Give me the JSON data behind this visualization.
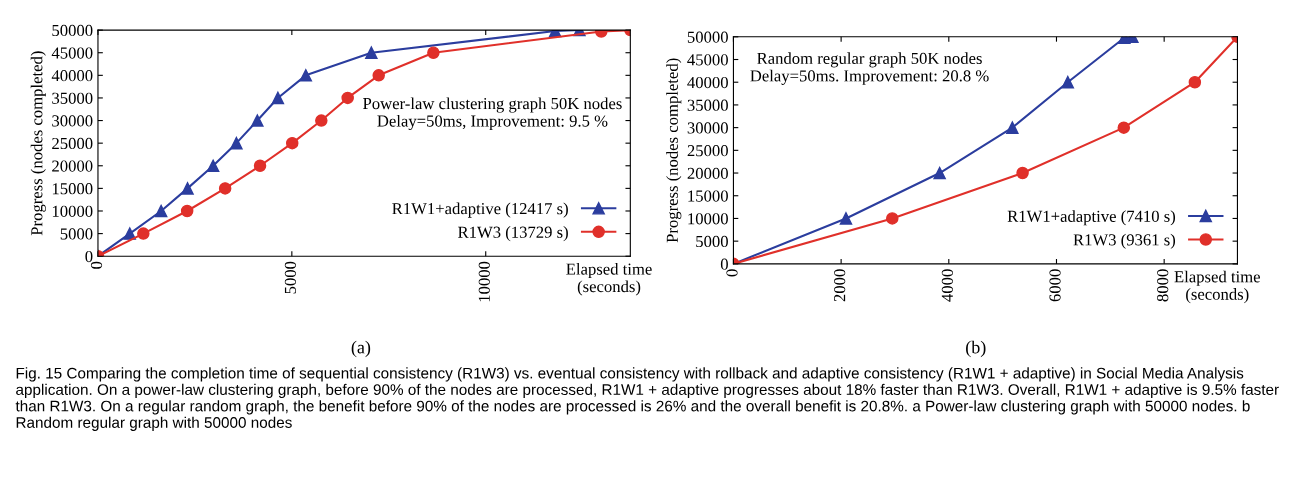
{
  "chart_data": [
    {
      "type": "line",
      "xlabel": "Elapsed time\n(seconds)",
      "ylabel": "Progress (nodes completed)",
      "xlim": [
        0,
        13729
      ],
      "xticks": [
        0,
        5000,
        10000
      ],
      "ylim": [
        0,
        50000
      ],
      "yticks": [
        0,
        5000,
        10000,
        15000,
        20000,
        25000,
        30000,
        35000,
        40000,
        45000,
        50000
      ],
      "legend": "bottom right",
      "grid": false,
      "series": [
        {
          "name": "R1W1+adaptive (12417 s)",
          "color": "#2b3d9e",
          "marker": "triangle",
          "x": [
            0,
            820,
            1630,
            2310,
            2970,
            3570,
            4110,
            4640,
            5360,
            7050,
            11790,
            12417
          ],
          "values": [
            0,
            5000,
            10000,
            15000,
            20000,
            25000,
            30000,
            35000,
            40000,
            45000,
            49800,
            50000
          ]
        },
        {
          "name": "R1W3 (13729 s)",
          "color": "#e0302a",
          "marker": "circle",
          "x": [
            0,
            1170,
            2300,
            3280,
            4180,
            5010,
            5760,
            6440,
            7240,
            8650,
            12980,
            13729
          ],
          "values": [
            0,
            5000,
            10000,
            15000,
            20000,
            25000,
            30000,
            35000,
            40000,
            45000,
            49700,
            50000
          ]
        }
      ],
      "annotations": [
        "Power-law clustering graph 50K nodes\nDelay=50ms, Improvement: 9.5 %",
        "(a)"
      ]
    },
    {
      "type": "line",
      "xlabel": "Elapsed time\n(seconds)",
      "ylabel": "Progress (nodes completed)",
      "xlim": [
        0,
        9361
      ],
      "xticks": [
        0,
        2000,
        4000,
        6000,
        8000
      ],
      "ylim": [
        0,
        50000
      ],
      "yticks": [
        0,
        5000,
        10000,
        15000,
        20000,
        25000,
        30000,
        35000,
        40000,
        45000,
        50000
      ],
      "legend": "bottom right",
      "grid": false,
      "series": [
        {
          "name": "R1W1+adaptive (7410 s)",
          "color": "#2b3d9e",
          "marker": "triangle",
          "x": [
            0,
            2090,
            3830,
            5180,
            6210,
            7260,
            7410
          ],
          "values": [
            0,
            10000,
            20000,
            30000,
            40000,
            49800,
            50000
          ]
        },
        {
          "name": "R1W3 (9361 s)",
          "color": "#e0302a",
          "marker": "circle",
          "x": [
            0,
            2950,
            5370,
            7250,
            8570,
            9361
          ],
          "values": [
            0,
            10000,
            20000,
            30000,
            40000,
            50000
          ]
        }
      ],
      "annotations": [
        "Random regular graph 50K nodes\nDelay=50ms. Improvement: 20.8 %",
        "(b)"
      ]
    },
    {
      "type": "other",
      "annotations": [
        "Fig. 15 Comparing the completion time of sequential consistency (R1W3) vs. eventual consistency with rollback and adaptive consistency (R1W1 + adaptive) in Social Media Analysis application. On a power-law clustering graph, before 90% of the nodes are processed, R1W1 + adaptive progresses about 18% faster than R1W3. Overall, R1W1 + adaptive is 9.5% faster than R1W3. On a regular random graph, the benefit before 90% of the nodes are processed is 26% and the overall benefit is 20.8%. a Power-law clustering graph with 50000 nodes. b Random regular graph with 50000 nodes"
      ]
    }
  ]
}
